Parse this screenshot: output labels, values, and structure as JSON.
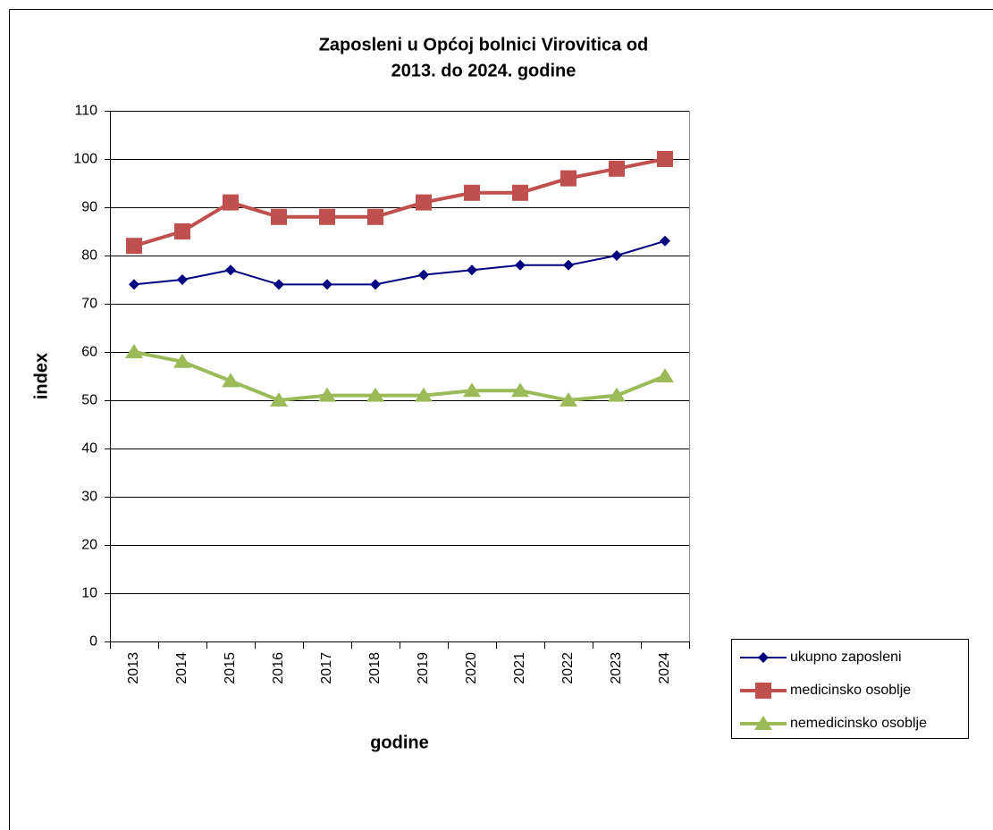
{
  "chart_data": {
    "type": "line",
    "title": [
      "Zaposleni u Općoj bolnici Virovitica od",
      "2013. do 2024. godine"
    ],
    "x_label": "godine",
    "y_label": "index",
    "categories": [
      "2013",
      "2014",
      "2015",
      "2016",
      "2017",
      "2018",
      "2019",
      "2020",
      "2021",
      "2022",
      "2023",
      "2024"
    ],
    "series": [
      {
        "name": "ukupno zaposleni",
        "color": "#000080",
        "marker": "diamond",
        "values": [
          74,
          75,
          77,
          74,
          74,
          74,
          76,
          77,
          78,
          78,
          80,
          83
        ]
      },
      {
        "name": "medicinsko osoblje",
        "color": "#c0504d",
        "marker": "square",
        "values": [
          82,
          85,
          91,
          88,
          88,
          88,
          91,
          93,
          93,
          96,
          98,
          100
        ]
      },
      {
        "name": "nemedicinsko osoblje",
        "color": "#9bbb59",
        "marker": "triangle",
        "values": [
          60,
          58,
          54,
          50,
          51,
          51,
          51,
          52,
          52,
          50,
          51,
          55
        ]
      }
    ],
    "ylim": [
      0,
      110
    ],
    "yticks": [
      0,
      10,
      20,
      30,
      40,
      50,
      60,
      70,
      80,
      90,
      100,
      110
    ],
    "grid": true,
    "legend": "right"
  }
}
